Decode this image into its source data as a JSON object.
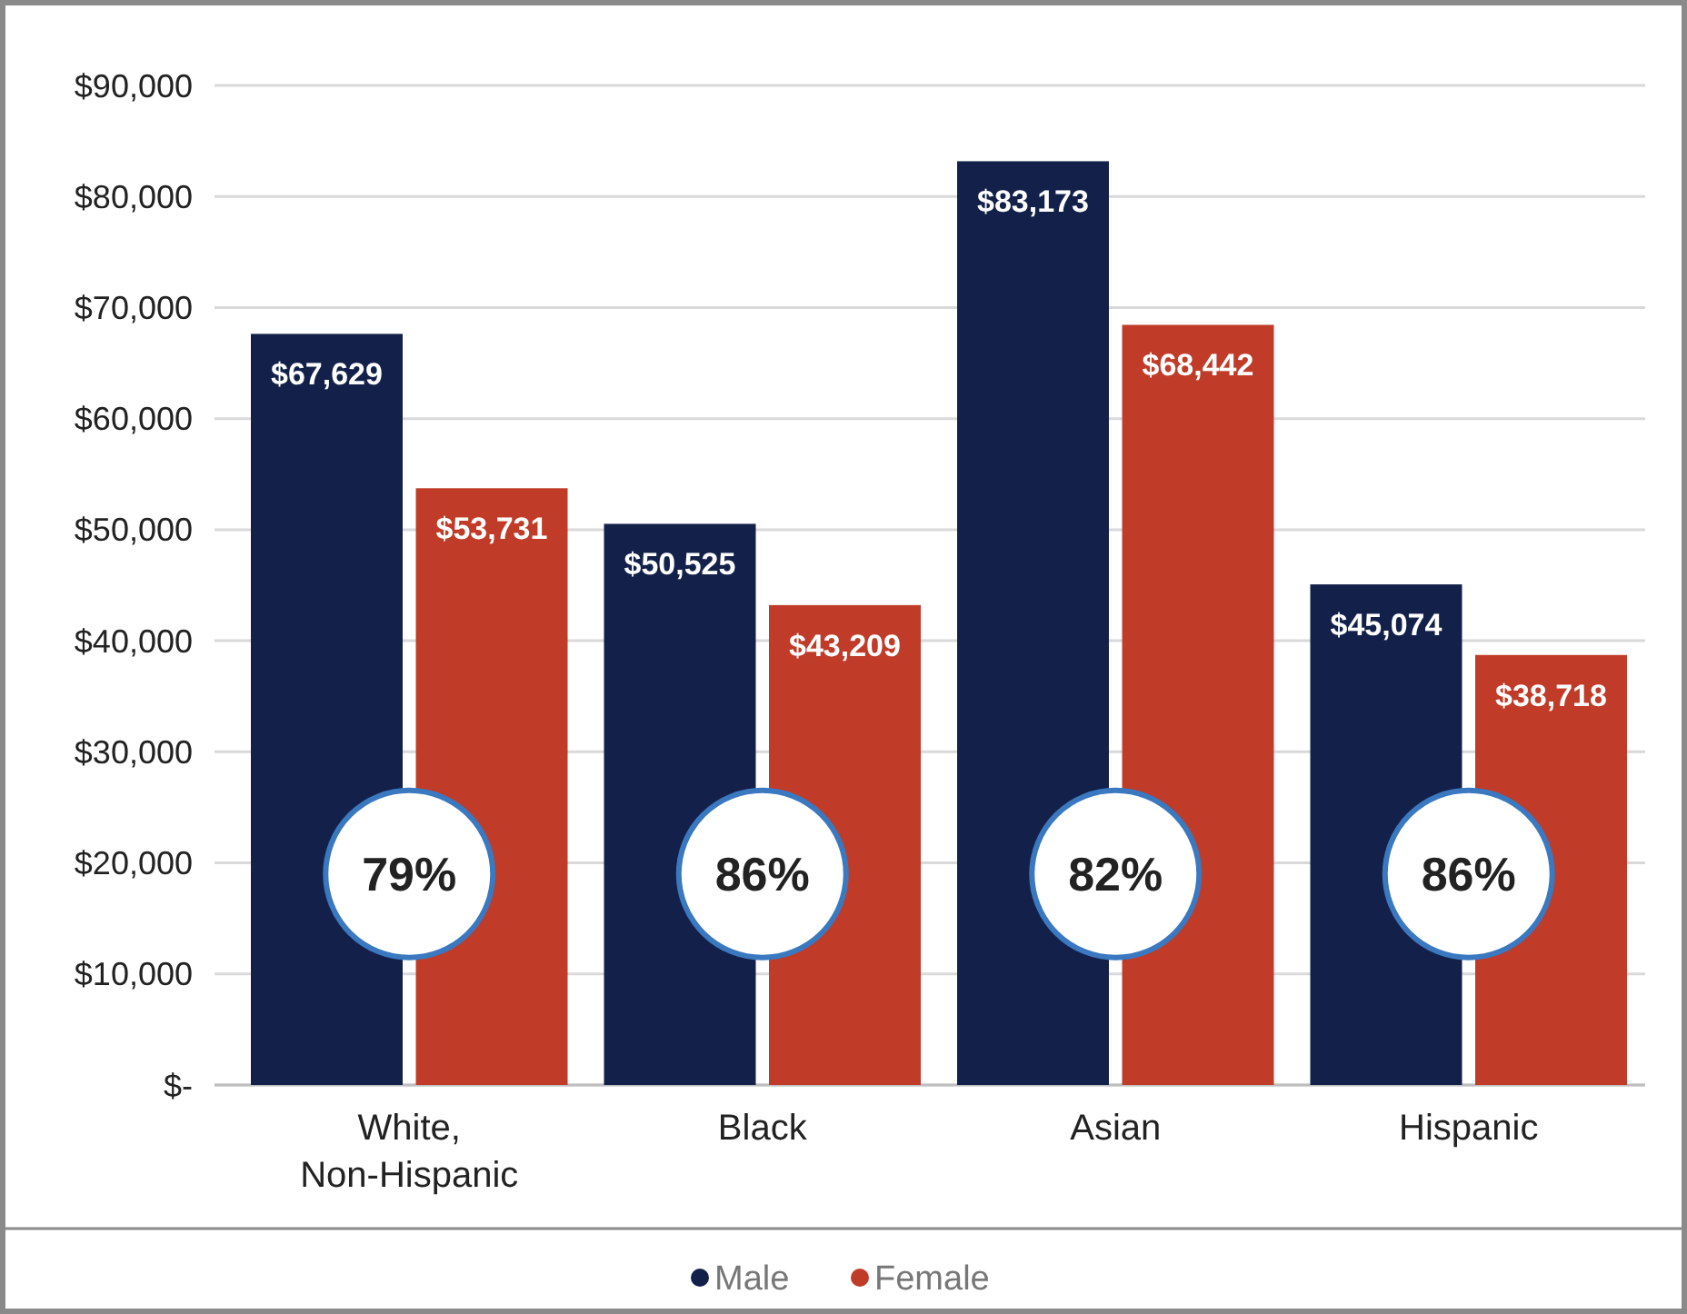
{
  "chart_data": {
    "type": "bar",
    "categories": [
      "White, Non-Hispanic",
      "Black",
      "Asian",
      "Hispanic"
    ],
    "series": [
      {
        "name": "Male",
        "color": "#13214a",
        "values": [
          67629,
          50525,
          83173,
          45074
        ],
        "value_labels": [
          "$67,629",
          "$50,525",
          "$83,173",
          "$45,074"
        ]
      },
      {
        "name": "Female",
        "color": "#c03b28",
        "values": [
          53731,
          43209,
          68442,
          38718
        ],
        "value_labels": [
          "$53,731",
          "$43,209",
          "$68,442",
          "$38,718"
        ]
      }
    ],
    "ylim": [
      0,
      90000
    ],
    "yticks": [
      {
        "value": 0,
        "label": "$-"
      },
      {
        "value": 10000,
        "label": "$10,000"
      },
      {
        "value": 20000,
        "label": "$20,000"
      },
      {
        "value": 30000,
        "label": "$30,000"
      },
      {
        "value": 40000,
        "label": "$40,000"
      },
      {
        "value": 50000,
        "label": "$50,000"
      },
      {
        "value": 60000,
        "label": "$60,000"
      },
      {
        "value": 70000,
        "label": "$70,000"
      },
      {
        "value": 80000,
        "label": "$80,000"
      },
      {
        "value": 90000,
        "label": "$90,000"
      }
    ],
    "grid": "y",
    "legend": "bottom",
    "marker": "circle",
    "annotations": [
      {
        "text": "79%",
        "x": "White, Non-Hispanic",
        "y": 19000
      },
      {
        "text": "86%",
        "x": "Black",
        "y": 19000
      },
      {
        "text": "82%",
        "x": "Asian",
        "y": 19000
      },
      {
        "text": "86%",
        "x": "Hispanic",
        "y": 19000
      }
    ]
  }
}
